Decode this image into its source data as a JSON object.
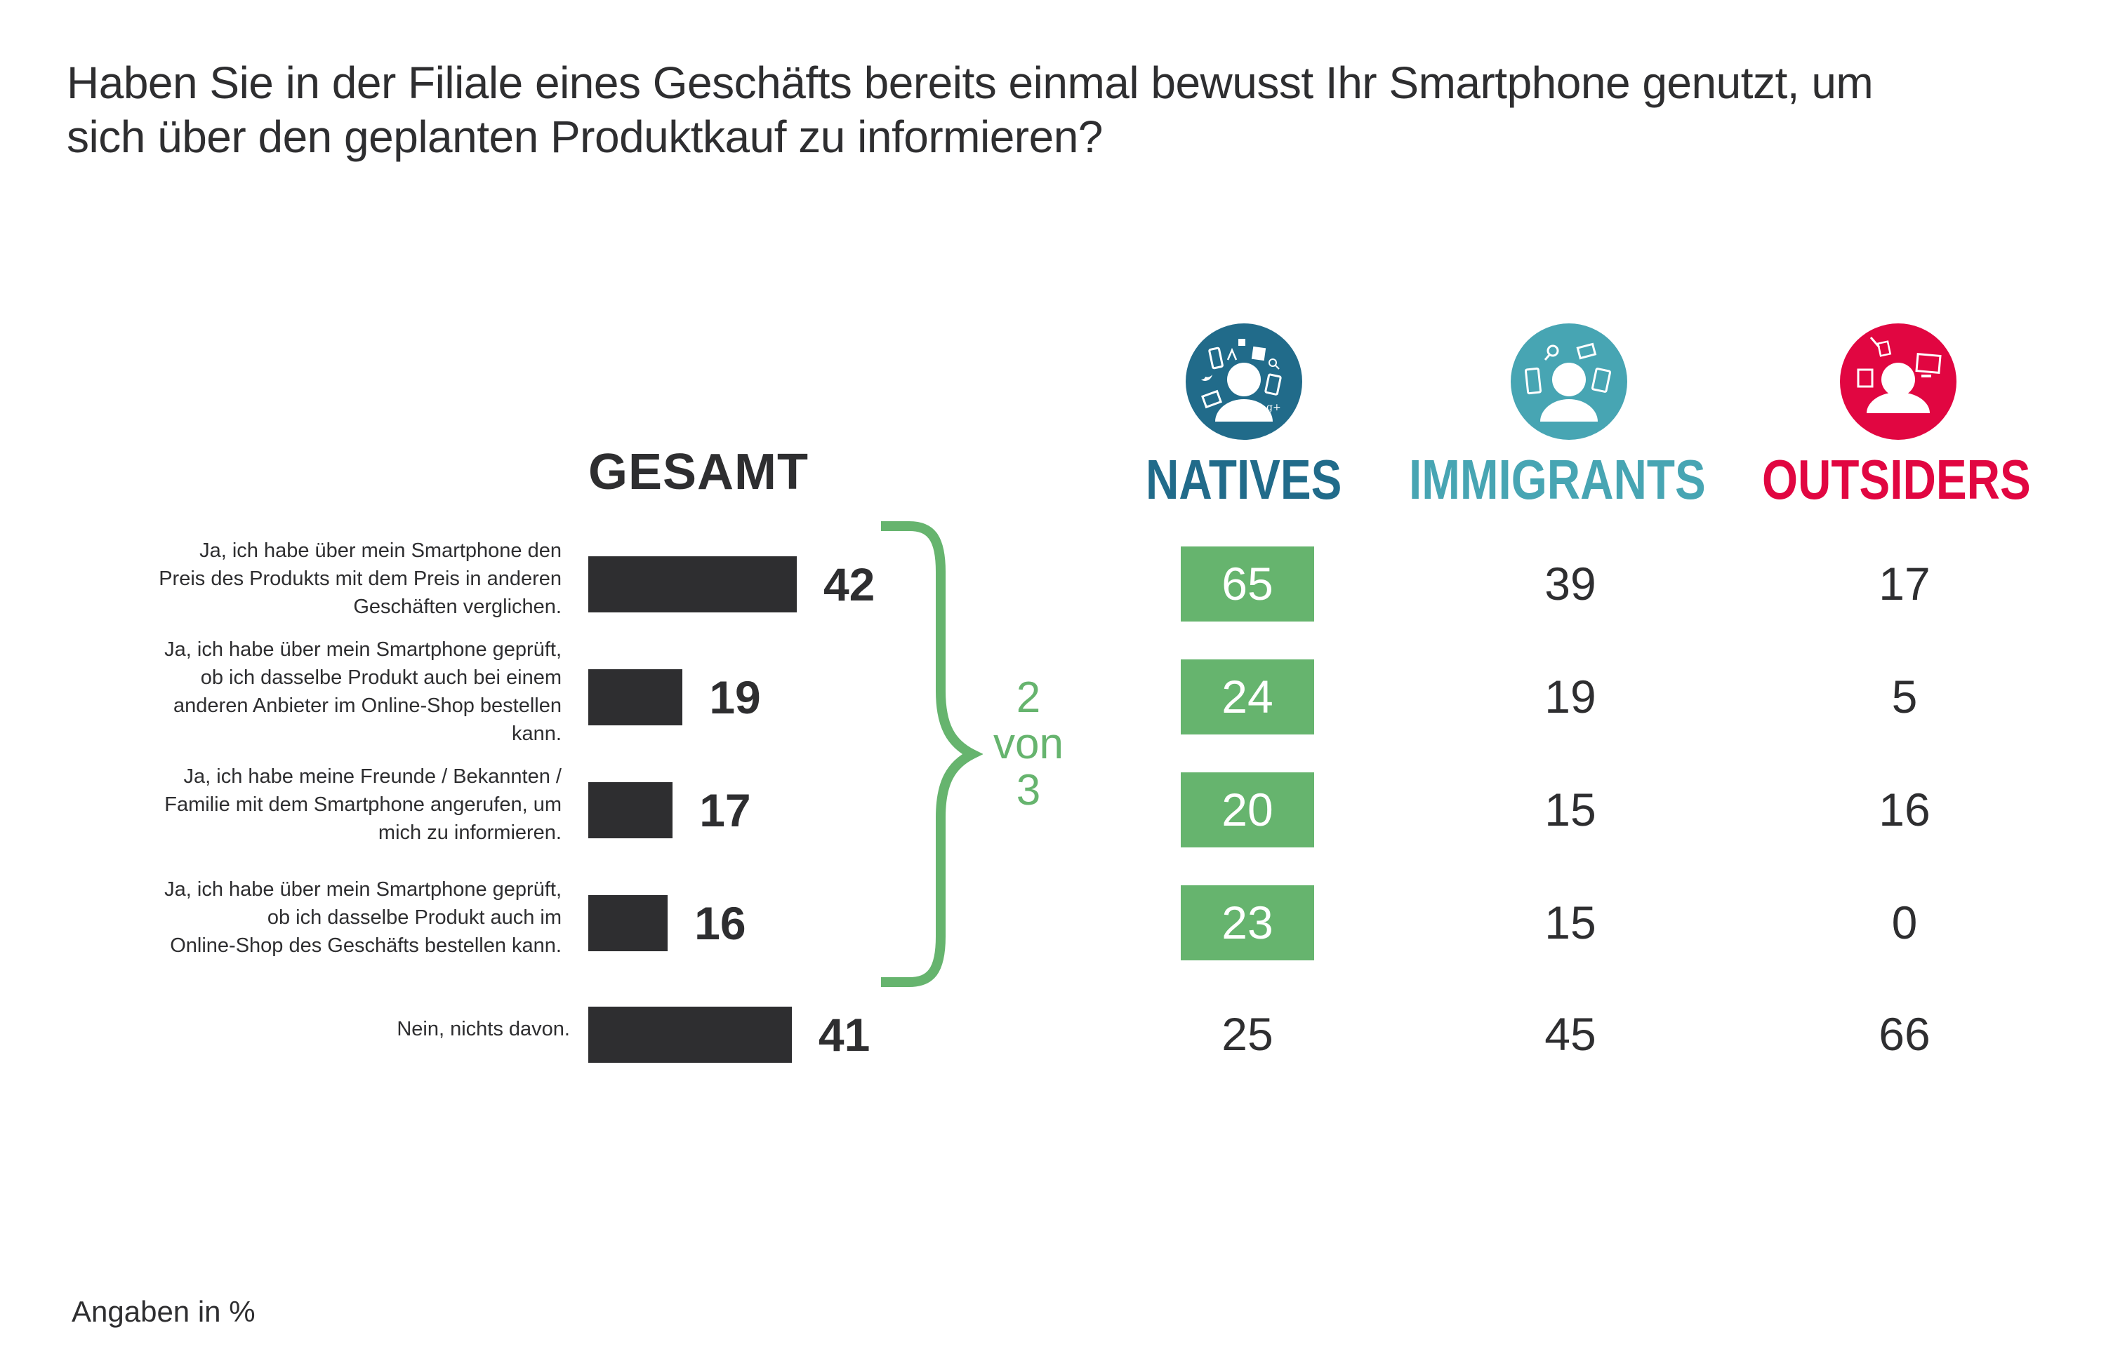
{
  "title": {
    "line1": "Haben Sie in der Filiale eines Geschäfts bereits einmal bewusst Ihr Smartphone genutzt, um",
    "line2": "sich über den geplanten Produktkauf zu informieren?"
  },
  "footer": "Angaben in %",
  "bracket_label": {
    "l1": "2",
    "l2": "von",
    "l3": "3"
  },
  "colors": {
    "bar": "#2e2e30",
    "highlight": "#66b46e",
    "natives": "#216b8a",
    "immigrants": "#47a5b3",
    "outsiders": "#e10641"
  },
  "segments": [
    {
      "key": "natives",
      "label": "NATIVES",
      "icon": "natives-person-devices-icon"
    },
    {
      "key": "immigrants",
      "label": "IMMIGRANTS",
      "icon": "immigrants-person-devices-icon"
    },
    {
      "key": "outsiders",
      "label": "OUTSIDERS",
      "icon": "outsiders-person-offline-icon"
    }
  ],
  "chart_data": {
    "type": "bar",
    "title": "Haben Sie in der Filiale eines Geschäfts bereits einmal bewusst Ihr Smartphone genutzt, um sich über den geplanten Produktkauf zu informieren?",
    "xlabel": "",
    "ylabel": "",
    "unit": "Angaben in %",
    "orientation": "horizontal",
    "gesamt_header": "GESAMT",
    "xlim": [
      0,
      100
    ],
    "grid": false,
    "categories": [
      "Ja, ich habe über mein Smartphone den Preis des Produkts mit dem Preis in anderen Geschäften verglichen.",
      "Ja, ich habe über mein Smartphone geprüft, ob ich dasselbe Produkt auch bei einem anderen Anbieter im Online-Shop bestellen kann.",
      "Ja, ich habe meine Freunde / Bekannten / Familie mit dem Smartphone angerufen, um mich zu informieren.",
      "Ja, ich habe über mein Smartphone geprüft, ob ich dasselbe Produkt auch im Online-Shop des Geschäfts bestellen kann.",
      "Nein, nichts davon."
    ],
    "category_lines": [
      [
        "Ja, ich habe über mein Smartphone den",
        "Preis des Produkts mit dem Preis in anderen",
        "Geschäften verglichen."
      ],
      [
        "Ja, ich habe über mein Smartphone geprüft,",
        "ob ich dasselbe Produkt auch bei einem",
        "anderen Anbieter im Online-Shop bestellen",
        "kann."
      ],
      [
        "Ja, ich habe meine Freunde / Bekannten /",
        "Familie mit dem Smartphone angerufen, um",
        "mich zu informieren."
      ],
      [
        "Ja, ich habe über mein Smartphone geprüft,",
        "ob ich dasselbe Produkt auch im",
        "Online-Shop des Geschäfts bestellen kann."
      ],
      [
        "Nein, nichts davon."
      ]
    ],
    "series": [
      {
        "name": "GESAMT",
        "values": [
          42,
          19,
          17,
          16,
          41
        ]
      },
      {
        "name": "NATIVES",
        "values": [
          65,
          24,
          20,
          23,
          25
        ],
        "highlighted": [
          true,
          true,
          true,
          true,
          false
        ]
      },
      {
        "name": "IMMIGRANTS",
        "values": [
          39,
          19,
          15,
          15,
          45
        ]
      },
      {
        "name": "OUTSIDERS",
        "values": [
          17,
          5,
          16,
          0,
          66
        ]
      }
    ],
    "annotation": "2 von 3"
  }
}
